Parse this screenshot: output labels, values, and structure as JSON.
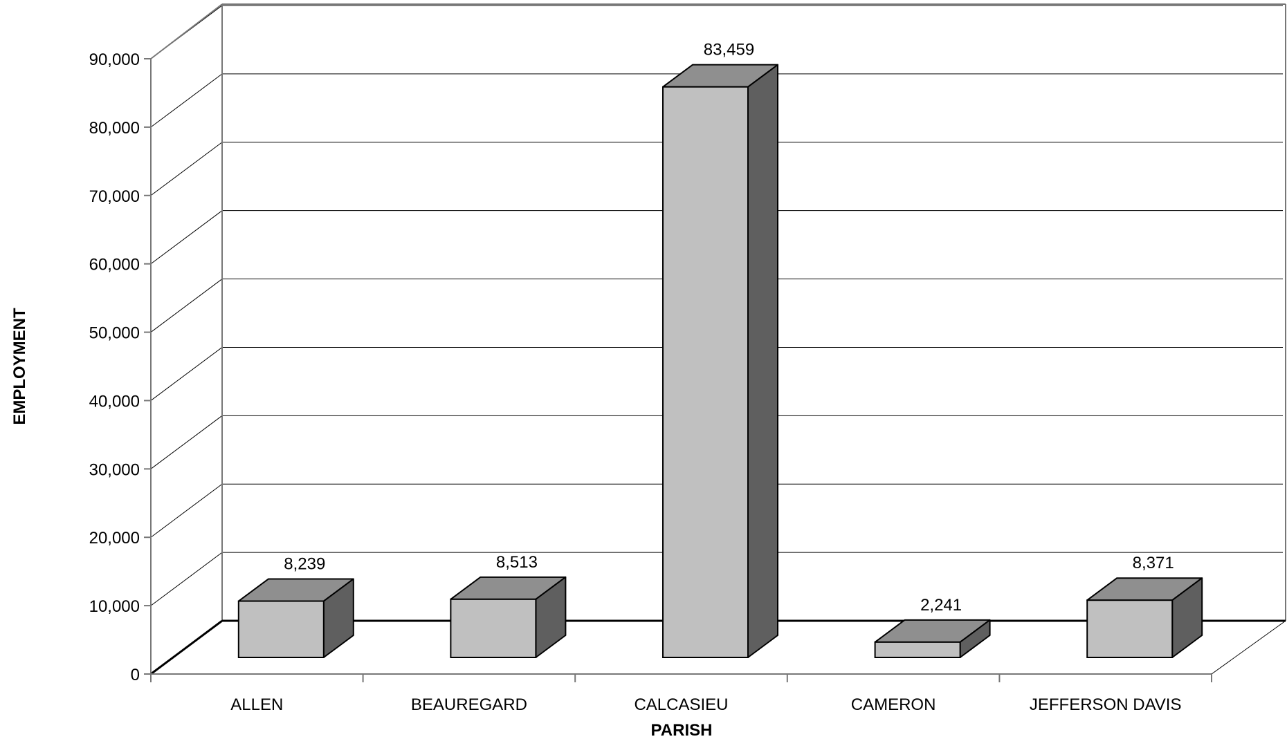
{
  "chart_data": {
    "type": "bar",
    "categories": [
      "ALLEN",
      "BEAUREGARD",
      "CALCASIEU",
      "CAMERON",
      "JEFFERSON DAVIS"
    ],
    "values": [
      8239,
      8513,
      83459,
      2241,
      8371
    ],
    "value_labels": [
      "8,239",
      "8,513",
      "83,459",
      "2,241",
      "8,371"
    ],
    "xlabel": "PARISH",
    "ylabel": "EMPLOYMENT",
    "ylim": [
      0,
      90000
    ],
    "yticks": [
      0,
      10000,
      20000,
      30000,
      40000,
      50000,
      60000,
      70000,
      80000,
      90000
    ],
    "ytick_labels": [
      "0",
      "10,000",
      "20,000",
      "30,000",
      "40,000",
      "50,000",
      "60,000",
      "70,000",
      "80,000",
      "90,000"
    ],
    "grid": true,
    "style": "3d",
    "colors": {
      "front": "#c0c0c0",
      "top": "#8f8f8f",
      "side": "#5f5f5f"
    }
  }
}
